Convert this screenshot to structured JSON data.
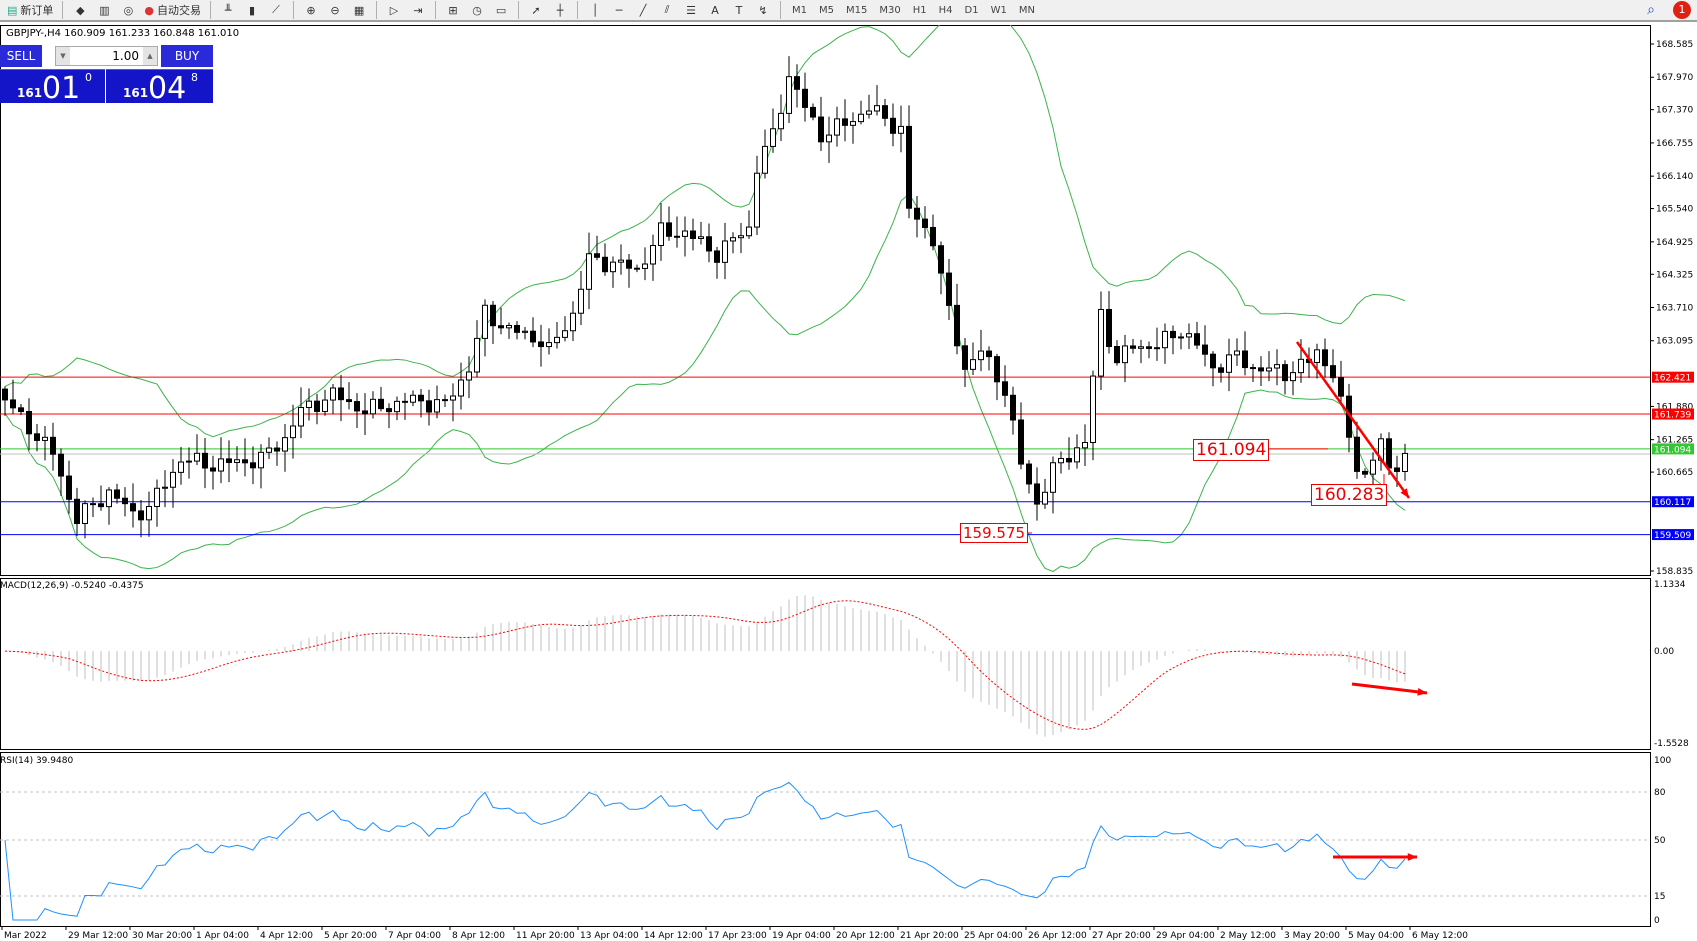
{
  "toolbar": {
    "new_order": "新订单",
    "auto_trading": "自动交易",
    "timeframes": [
      "M1",
      "M5",
      "M15",
      "M30",
      "H1",
      "H4",
      "D1",
      "W1",
      "MN"
    ],
    "icons": [
      "new-order-icon",
      "metaeditor-icon",
      "history-icon",
      "signals-icon",
      "auto-trading-icon",
      "bar-chart-icon",
      "candle-chart-icon",
      "line-chart-icon",
      "zoom-in-icon",
      "zoom-out-icon",
      "tile-windows-icon",
      "autoscroll-icon",
      "chart-shift-icon",
      "indicators-icon",
      "periods-icon",
      "templates-icon",
      "cursor-icon",
      "crosshair-icon",
      "vertical-line-icon",
      "horizontal-line-icon",
      "trendline-icon",
      "equidistant-channel-icon",
      "fibonacci-icon",
      "text-icon",
      "text-label-icon",
      "arrows-icon"
    ],
    "notifications": "1"
  },
  "chart": {
    "symbol_info": "GBPJPY-,H4  160.909 161.233 160.848 161.010"
  },
  "trade_panel": {
    "sell": "SELL",
    "buy": "BUY",
    "lots": "1.00",
    "bid": {
      "big": "161",
      "main": "01",
      "sup": "0"
    },
    "ask": {
      "big": "161",
      "main": "04",
      "sup": "8"
    }
  },
  "colors": {
    "bull": "#ffffff",
    "bear": "#000000",
    "bands": "#3cb44b",
    "macd_hist": "#c0c0c0",
    "macd_signal": "#ff0000",
    "rsi": "#1e90ff",
    "annotation": "#ff0000"
  },
  "chart_data": {
    "type": "candlestick",
    "price_axis": [
      "168.585",
      "167.970",
      "167.370",
      "166.755",
      "166.140",
      "165.540",
      "164.925",
      "164.325",
      "163.710",
      "163.095",
      "161.880",
      "161.265",
      "160.665",
      "158.835"
    ],
    "price_range": [
      158.835,
      168.585
    ],
    "close_keypoints": [
      [
        0,
        162.0
      ],
      [
        3,
        161.5
      ],
      [
        6,
        161.0
      ],
      [
        9,
        159.8
      ],
      [
        13,
        160.3
      ],
      [
        16,
        159.9
      ],
      [
        18,
        160.0
      ],
      [
        22,
        160.9
      ],
      [
        26,
        160.8
      ],
      [
        32,
        160.9
      ],
      [
        35,
        161.3
      ],
      [
        37,
        161.8
      ],
      [
        41,
        162.1
      ],
      [
        45,
        161.8
      ],
      [
        51,
        162.0
      ],
      [
        55,
        161.9
      ],
      [
        58,
        162.6
      ],
      [
        60,
        163.6
      ],
      [
        63,
        163.3
      ],
      [
        67,
        163.1
      ],
      [
        68,
        162.9
      ],
      [
        71,
        163.6
      ],
      [
        73,
        164.6
      ],
      [
        77,
        164.5
      ],
      [
        79,
        164.4
      ],
      [
        82,
        165.1
      ],
      [
        85,
        165.1
      ],
      [
        89,
        164.7
      ],
      [
        93,
        165.2
      ],
      [
        94,
        166.3
      ],
      [
        96,
        166.9
      ],
      [
        98,
        168.0
      ],
      [
        100,
        167.4
      ],
      [
        102,
        166.9
      ],
      [
        105,
        167.1
      ],
      [
        108,
        167.4
      ],
      [
        110,
        167.2
      ],
      [
        112,
        167.0
      ],
      [
        113,
        165.5
      ],
      [
        116,
        165.0
      ],
      [
        118,
        163.6
      ],
      [
        120,
        162.6
      ],
      [
        122,
        162.9
      ],
      [
        125,
        162.2
      ],
      [
        127,
        160.8
      ],
      [
        129,
        160.1
      ],
      [
        131,
        160.7
      ],
      [
        133,
        161.0
      ],
      [
        135,
        161.2
      ],
      [
        136,
        162.4
      ],
      [
        137,
        163.6
      ],
      [
        139,
        162.7
      ],
      [
        141,
        163.0
      ],
      [
        144,
        163.0
      ],
      [
        147,
        163.3
      ],
      [
        149,
        163.0
      ],
      [
        151,
        162.6
      ],
      [
        154,
        162.8
      ],
      [
        156,
        162.6
      ],
      [
        160,
        162.5
      ],
      [
        163,
        162.7
      ],
      [
        164,
        162.9
      ],
      [
        166,
        162.5
      ],
      [
        168,
        161.3
      ],
      [
        169,
        160.8
      ],
      [
        170,
        160.6
      ],
      [
        172,
        161.2
      ],
      [
        173,
        160.7
      ],
      [
        175,
        161.01
      ]
    ],
    "time_axis": [
      "Mar 2022",
      "29 Mar 12:00",
      "30 Mar 20:00",
      "1 Apr 04:00",
      "4 Apr 12:00",
      "5 Apr 20:00",
      "7 Apr 04:00",
      "8 Apr 12:00",
      "11 Apr 20:00",
      "13 Apr 04:00",
      "14 Apr 12:00",
      "17 Apr 23:00",
      "19 Apr 04:00",
      "20 Apr 12:00",
      "21 Apr 20:00",
      "25 Apr 04:00",
      "26 Apr 12:00",
      "27 Apr 20:00",
      "29 Apr 04:00",
      "2 May 12:00",
      "3 May 20:00",
      "5 May 04:00",
      "6 May 12:00"
    ],
    "levels": [
      {
        "price": 162.421,
        "label": "162.421",
        "color": "#ff0000"
      },
      {
        "price": 161.739,
        "label": "161.739",
        "color": "#ff0000"
      },
      {
        "price": 161.094,
        "label": "161.094",
        "color": "#32c832"
      },
      {
        "price": 160.117,
        "label": "160.117",
        "color": "#0000ff"
      },
      {
        "price": 159.509,
        "label": "159.509",
        "color": "#0000ff"
      }
    ],
    "current_price": 161.01,
    "annotations": [
      "161.094",
      "160.283",
      "159.575"
    ],
    "macd": {
      "label": "MACD(12,26,9) -0.5240 -0.4375",
      "axis": [
        "1.1334",
        "0.00",
        "-1.5528"
      ],
      "range": [
        -1.5528,
        1.1334
      ]
    },
    "rsi": {
      "label": "RSI(14) 39.9480",
      "axis": [
        "100",
        "80",
        "50",
        "15",
        "0"
      ],
      "levels": [
        80,
        50,
        15
      ]
    }
  }
}
